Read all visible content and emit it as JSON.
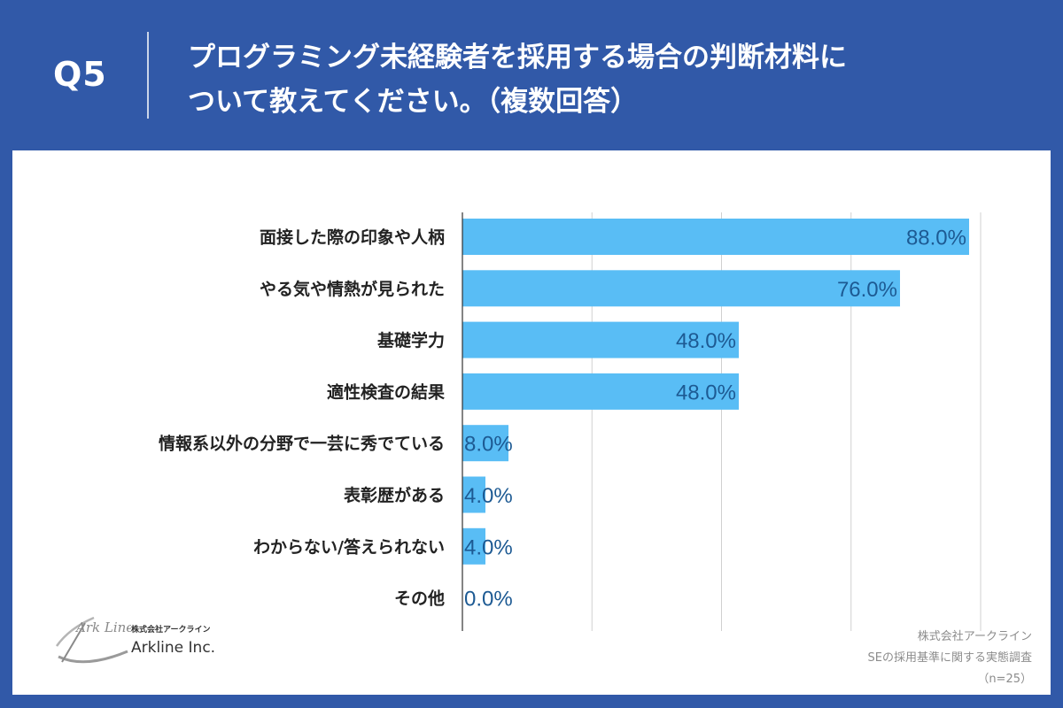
{
  "header": {
    "q_number": "Q5",
    "question_line1": "プログラミング未経験者を採用する場合の判断材料に",
    "question_line2": "ついて教えてください。（複数回答）"
  },
  "logo": {
    "emblem_text": "Ark Line",
    "company_jp": "株式会社アークライン",
    "company_en": "Arkline Inc."
  },
  "source": {
    "line1": "株式会社アークライン",
    "line2": "SEの採用基準に関する実態調査",
    "line3": "（n=25）"
  },
  "colors": {
    "bar": "#59bdf5",
    "label_text": "#1d5a93",
    "category_text": "#222222",
    "grid": "#d0d0d0",
    "header_bg": "#3159a8"
  },
  "chart_data": {
    "type": "bar",
    "orientation": "horizontal",
    "categories": [
      "面接した際の印象や人柄",
      "やる気や情熱が見られた",
      "基礎学力",
      "適性検査の結果",
      "情報系以外の分野で一芸に秀でている",
      "表彰歴がある",
      "わからない/答えられない",
      "その他"
    ],
    "values": [
      88.0,
      76.0,
      48.0,
      48.0,
      8.0,
      4.0,
      4.0,
      0.0
    ],
    "data_labels": [
      "88.0%",
      "76.0%",
      "48.0%",
      "48.0%",
      "8.0%",
      "4.0%",
      "4.0%",
      "0.0%"
    ],
    "xlim": [
      0,
      90
    ],
    "grid_step": 22.5,
    "grid": true,
    "legend": false
  }
}
